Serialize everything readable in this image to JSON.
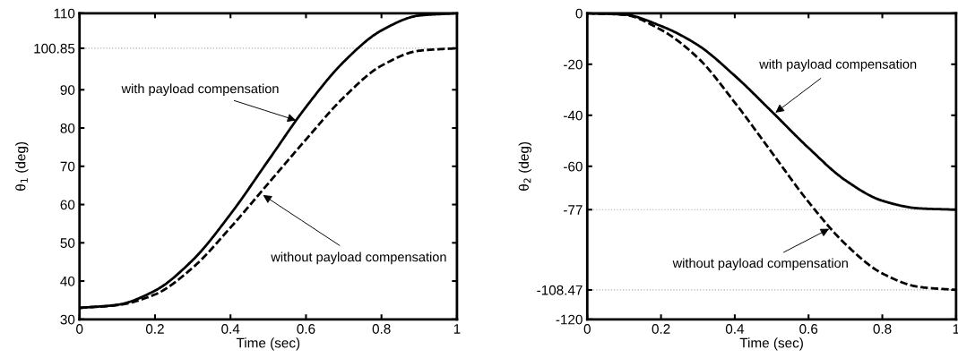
{
  "chart_data": [
    {
      "type": "line",
      "xlabel": "Time (sec)",
      "ylabel": "θ$_{1}$ (deg)",
      "x": [
        0,
        0.1,
        0.2,
        0.3,
        0.4,
        0.5,
        0.6,
        0.7,
        0.8,
        0.9,
        1
      ],
      "series": [
        {
          "color": "#000000",
          "line_style": "solid",
          "values": [
            33,
            33.8,
            37.5,
            45.5,
            57.5,
            71.5,
            85.5,
            97.3,
            105.5,
            109.4,
            110
          ]
        },
        {
          "color": "#000000",
          "line_style": "dashed",
          "values": [
            33,
            33.7,
            36.5,
            43.5,
            54,
            65.5,
            77,
            88,
            96.3,
            100.2,
            100.85
          ]
        }
      ],
      "xlim": [
        0,
        1
      ],
      "xticks": [
        0,
        0.2,
        0.4,
        0.6,
        0.8,
        1
      ],
      "ylim": [
        30,
        110
      ],
      "yticks": [
        30,
        40,
        50,
        60,
        70,
        80,
        90,
        100.85,
        110
      ],
      "ref_lines": [
        {
          "axis": "y",
          "value": 100.85,
          "color": "#b0b0b0",
          "line_style": "dotted"
        }
      ],
      "annotations": [
        {
          "text": "with payload compensation",
          "x": 0.574,
          "y": 82
        },
        {
          "text": "without payload compensation",
          "x": 0.486,
          "y": 62.5
        }
      ]
    },
    {
      "type": "line",
      "xlabel": "Time (sec)",
      "ylabel": "θ$_{2}$ (deg)",
      "x": [
        0,
        0.1,
        0.2,
        0.3,
        0.4,
        0.5,
        0.6,
        0.7,
        0.8,
        0.9,
        1
      ],
      "series": [
        {
          "color": "#000000",
          "line_style": "solid",
          "values": [
            0,
            -0.5,
            -5,
            -12.5,
            -24.5,
            -38.5,
            -52.8,
            -65.5,
            -73.5,
            -76.5,
            -77
          ]
        },
        {
          "color": "#000000",
          "line_style": "dashed",
          "values": [
            0,
            -0.6,
            -6.5,
            -17.5,
            -35,
            -54.5,
            -74,
            -90.5,
            -102,
            -107.3,
            -108.47
          ]
        }
      ],
      "xlim": [
        0,
        1
      ],
      "xticks": [
        0,
        0.2,
        0.4,
        0.6,
        0.8,
        1
      ],
      "ylim": [
        -120,
        0
      ],
      "yticks": [
        -120,
        -108.47,
        -77,
        -60,
        -40,
        -20,
        0
      ],
      "ref_lines": [
        {
          "axis": "y",
          "value": -77,
          "color": "#b0b0b0",
          "line_style": "dotted"
        },
        {
          "axis": "y",
          "value": -108.47,
          "color": "#b0b0b0",
          "line_style": "dotted"
        }
      ],
      "annotations": [
        {
          "text": "with payload compensation",
          "x": 0.51,
          "y": -39
        },
        {
          "text": "without payload compensation",
          "x": 0.656,
          "y": -84.5
        }
      ]
    }
  ]
}
